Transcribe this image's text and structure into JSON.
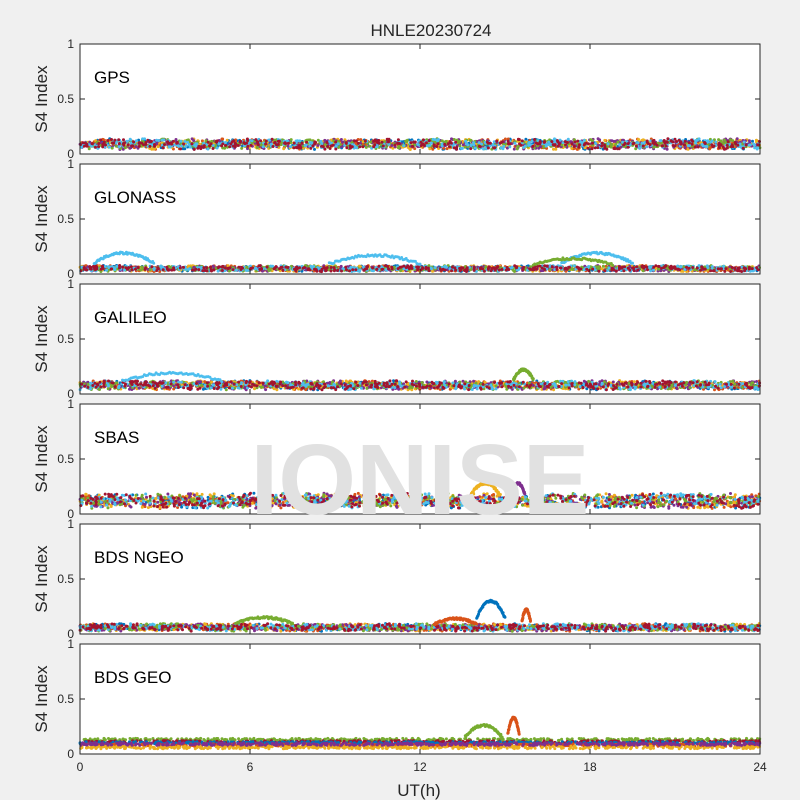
{
  "watermark": "IONISE",
  "colors": {
    "series": [
      "#0072BD",
      "#D95319",
      "#EDB120",
      "#7E2F8E",
      "#77AC30",
      "#4DBEEE",
      "#A2142F"
    ]
  },
  "chart_data": {
    "type": "scatter",
    "title": "HNLE20230724",
    "xlabel": "UT(h)",
    "xlim": [
      0,
      24
    ],
    "xticks": [
      0,
      6,
      12,
      18,
      24
    ],
    "grid": false,
    "panels": [
      {
        "label": "GPS",
        "ylabel": "S4 Index",
        "ylim": [
          0,
          1
        ],
        "yticks": [
          "0",
          "0.5",
          "1"
        ],
        "baseline": 0.09,
        "noise": 0.035,
        "events": []
      },
      {
        "label": "GLONASS",
        "ylabel": "S4 Index",
        "ylim": [
          0,
          1
        ],
        "yticks": [
          "0",
          "0.5",
          "1"
        ],
        "baseline": 0.05,
        "noise": 0.02,
        "events": [
          {
            "x_start": 0.5,
            "x_end": 2.6,
            "y_peak": 0.19,
            "series": "#4DBEEE"
          },
          {
            "x_start": 8.8,
            "x_end": 12.0,
            "y_peak": 0.17,
            "series": "#4DBEEE"
          },
          {
            "x_start": 17.0,
            "x_end": 19.5,
            "y_peak": 0.19,
            "series": "#4DBEEE"
          },
          {
            "x_start": 16.0,
            "x_end": 18.8,
            "y_peak": 0.14,
            "series": "#77AC30"
          }
        ]
      },
      {
        "label": "GALILEO",
        "ylabel": "S4 Index",
        "ylim": [
          0,
          1
        ],
        "yticks": [
          "0",
          "0.5",
          "1"
        ],
        "baseline": 0.08,
        "noise": 0.03,
        "events": [
          {
            "x_start": 1.5,
            "x_end": 5.0,
            "y_peak": 0.19,
            "series": "#4DBEEE"
          },
          {
            "x_start": 15.3,
            "x_end": 16.0,
            "y_peak": 0.22,
            "series": "#77AC30"
          }
        ]
      },
      {
        "label": "SBAS",
        "ylabel": "S4 Index",
        "ylim": [
          0,
          1
        ],
        "yticks": [
          "0",
          "0.5",
          "1"
        ],
        "baseline": 0.12,
        "noise": 0.05,
        "events": [
          {
            "x_start": 13.8,
            "x_end": 14.8,
            "y_peak": 0.28,
            "series": "#EDB120"
          },
          {
            "x_start": 15.2,
            "x_end": 15.7,
            "y_peak": 0.28,
            "series": "#7E2F8E"
          }
        ]
      },
      {
        "label": "BDS NGEO",
        "ylabel": "S4 Index",
        "ylim": [
          0,
          1
        ],
        "yticks": [
          "0",
          "0.5",
          "1"
        ],
        "baseline": 0.06,
        "noise": 0.025,
        "events": [
          {
            "x_start": 14.0,
            "x_end": 15.0,
            "y_peak": 0.3,
            "series": "#0072BD"
          },
          {
            "x_start": 15.6,
            "x_end": 15.9,
            "y_peak": 0.22,
            "series": "#D95319"
          },
          {
            "x_start": 5.5,
            "x_end": 7.5,
            "y_peak": 0.15,
            "series": "#77AC30"
          },
          {
            "x_start": 12.5,
            "x_end": 14.0,
            "y_peak": 0.14,
            "series": "#D95319"
          }
        ]
      },
      {
        "label": "BDS GEO",
        "ylabel": "S4 Index",
        "ylim": [
          0,
          1
        ],
        "yticks": [
          "0",
          "0.5",
          "1"
        ],
        "baseline": 0.1,
        "noise": 0.012,
        "events": [
          {
            "x_start": 13.6,
            "x_end": 14.9,
            "y_peak": 0.26,
            "series": "#77AC30"
          },
          {
            "x_start": 15.1,
            "x_end": 15.5,
            "y_peak": 0.33,
            "series": "#D95319"
          }
        ],
        "geo_levels": [
          {
            "series": "#77AC30",
            "y": 0.13
          },
          {
            "series": "#A2142F",
            "y": 0.11
          },
          {
            "series": "#0072BD",
            "y": 0.1
          },
          {
            "series": "#D95319",
            "y": 0.08
          },
          {
            "series": "#EDB120",
            "y": 0.06
          },
          {
            "series": "#7E2F8E",
            "y": 0.09
          }
        ]
      }
    ]
  }
}
